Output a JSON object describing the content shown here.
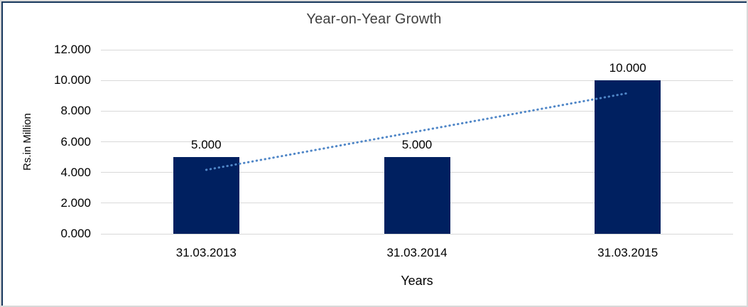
{
  "chart_data": {
    "type": "bar",
    "title": "Year-on-Year Growth",
    "categories": [
      "31.03.2013",
      "31.03.2014",
      "31.03.2015"
    ],
    "values": [
      5,
      5,
      10
    ],
    "data_labels": [
      "5.000",
      "5.000",
      "10.000"
    ],
    "xlabel": "Years",
    "ylabel": "Rs.in Million",
    "ylim": [
      0,
      12
    ],
    "ytick_step": 2,
    "ytick_labels": [
      "0.000",
      "2.000",
      "4.000",
      "6.000",
      "8.000",
      "10.000",
      "12.000"
    ],
    "grid": true,
    "legend": "none",
    "trendline": {
      "type": "linear",
      "style": "dotted",
      "start_value": 4.17,
      "end_value": 9.17
    },
    "colors": {
      "bar": "#002060",
      "trendline": "#4f86c7",
      "gridline": "#d9d9d9",
      "text": "#000000",
      "title": "#404040",
      "frame_dark": "#17375d",
      "frame_light": "#d9d9d9"
    }
  }
}
